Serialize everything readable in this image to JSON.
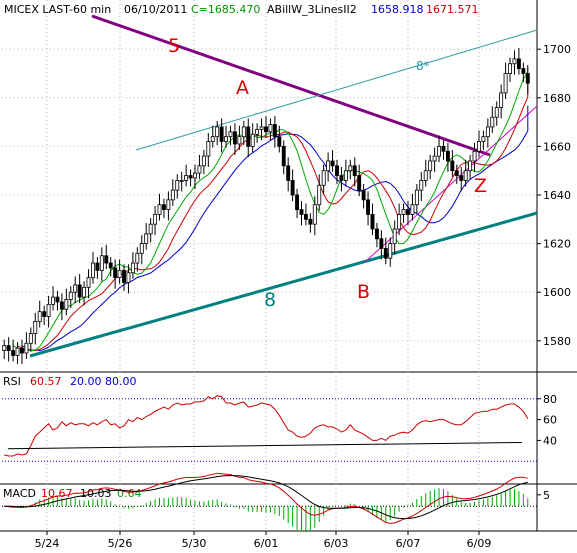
{
  "chart_data": [
    {
      "type": "candlestick",
      "header": {
        "symbol": "MICEX LAST-60 min",
        "date": "06/10/2011",
        "close": "C=1685.470",
        "indicator": "ABillW_3LinesII2",
        "ind_val1": "1658.918",
        "ind_val2": "1671.571"
      },
      "yaxis": {
        "min": 1568,
        "max": 1712,
        "ticks": [
          "1700",
          "1680",
          "1660",
          "1640",
          "1620",
          "1600",
          "1580"
        ],
        "tick_values": [
          1700,
          1680,
          1660,
          1640,
          1620,
          1600,
          1580
        ]
      },
      "x_ticks": [
        "5/24",
        "5/26",
        "5/30",
        "6/01",
        "6/03",
        "6/07",
        "6/09"
      ],
      "colors": {
        "candle": "#000000",
        "jaw": "#0000cc",
        "teeth": "#cc0000",
        "lips": "#00aa00",
        "trend5": "#800080",
        "trend8": "#008080",
        "channel": "#3399aa",
        "support": "#cc00cc",
        "label": "#dd0000"
      },
      "annotations": {
        "A": "A",
        "B": "B",
        "Z": "Z",
        "five": "5",
        "eight": "8",
        "eight_star": "8*"
      },
      "close_series": [
        1578,
        1576,
        1574,
        1577,
        1575,
        1579,
        1583,
        1588,
        1592,
        1590,
        1595,
        1598,
        1596,
        1593,
        1597,
        1600,
        1603,
        1598,
        1602,
        1606,
        1612,
        1609,
        1615,
        1612,
        1610,
        1606,
        1609,
        1604,
        1608,
        1612,
        1616,
        1620,
        1624,
        1628,
        1632,
        1636,
        1634,
        1638,
        1642,
        1646,
        1646,
        1648,
        1647,
        1649,
        1652,
        1656,
        1662,
        1664,
        1668,
        1662,
        1664,
        1666,
        1661,
        1664,
        1668,
        1660,
        1665,
        1667,
        1668,
        1666,
        1669,
        1664,
        1660,
        1652,
        1646,
        1640,
        1634,
        1632,
        1630,
        1628,
        1636,
        1644,
        1650,
        1654,
        1652,
        1648,
        1646,
        1650,
        1652,
        1648,
        1642,
        1638,
        1632,
        1626,
        1622,
        1618,
        1614,
        1620,
        1626,
        1632,
        1634,
        1632,
        1636,
        1642,
        1646,
        1650,
        1654,
        1656,
        1660,
        1658,
        1654,
        1650,
        1648,
        1646,
        1650,
        1654,
        1658,
        1662,
        1664,
        1668,
        1672,
        1676,
        1682,
        1690,
        1694,
        1696,
        1692,
        1690,
        1686
      ]
    },
    {
      "type": "line",
      "name": "RSI",
      "legend": [
        "RSI",
        "60.57",
        "20.00",
        "80.00"
      ],
      "ylim": [
        0,
        100
      ],
      "ticks": [
        "80",
        "60",
        "40"
      ],
      "tick_values": [
        80,
        60,
        40
      ],
      "levels": [
        20,
        80
      ],
      "values": [
        26,
        25,
        25,
        27,
        26,
        27,
        35,
        44,
        48,
        52,
        56,
        50,
        52,
        58,
        54,
        57,
        55,
        56,
        56,
        54,
        57,
        55,
        58,
        60,
        55,
        56,
        52,
        54,
        60,
        58,
        62,
        60,
        63,
        65,
        68,
        70,
        72,
        70,
        74,
        76,
        74,
        75,
        75,
        77,
        77,
        78,
        82,
        80,
        83,
        82,
        76,
        76,
        74,
        76,
        77,
        72,
        73,
        74,
        76,
        75,
        74,
        70,
        64,
        57,
        50,
        48,
        44,
        43,
        44,
        47,
        52,
        54,
        55,
        53,
        53,
        51,
        48,
        50,
        55,
        50,
        48,
        46,
        43,
        40,
        40,
        42,
        40,
        44,
        45,
        47,
        48,
        47,
        50,
        55,
        58,
        59,
        58,
        59,
        60,
        60,
        58,
        56,
        55,
        55,
        58,
        62,
        66,
        67,
        68,
        68,
        70,
        70,
        72,
        74,
        75,
        75,
        72,
        68,
        61
      ],
      "trendline_values": [
        32,
        38
      ]
    },
    {
      "type": "line",
      "name": "MACD",
      "legend": [
        "MACD",
        "10.67",
        "10.03",
        "0.64"
      ],
      "ticks": [
        "5"
      ],
      "tick_values": [
        5
      ],
      "ylim": [
        -10,
        8
      ]
    }
  ]
}
